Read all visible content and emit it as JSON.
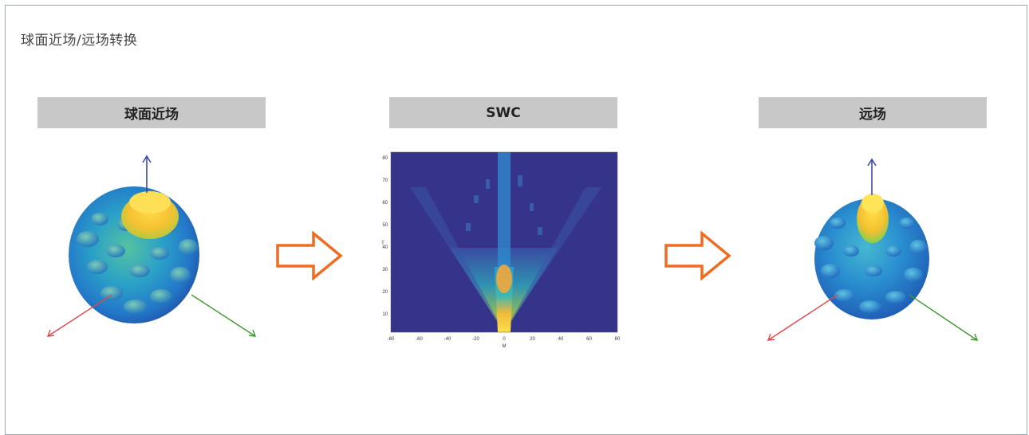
{
  "page": {
    "title": "球面近场/远场转换"
  },
  "panels": {
    "near": {
      "label": "球面近场"
    },
    "swc": {
      "label": "SWC"
    },
    "far": {
      "label": "远场"
    }
  },
  "colors": {
    "panel_bg": "#c8c8c9",
    "arrow": "#ef6c23",
    "heatmap_bg": "#35338a",
    "axis_x": "#e04848",
    "axis_y": "#3c9a2e",
    "axis_z": "#3b4aa8"
  },
  "swc_plot": {
    "xlabel": "M",
    "ylabel": "T",
    "xticks": [
      "-80",
      "-60",
      "-40",
      "-20",
      "0",
      "20",
      "40",
      "60",
      "80"
    ],
    "yticks": [
      "10",
      "20",
      "30",
      "40",
      "50",
      "60",
      "70",
      "80"
    ]
  }
}
